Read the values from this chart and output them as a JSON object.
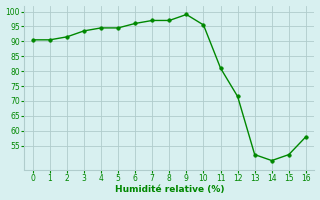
{
  "x": [
    0,
    1,
    2,
    3,
    4,
    5,
    6,
    7,
    8,
    9,
    10,
    11,
    12,
    13,
    14,
    15,
    16
  ],
  "y": [
    90.5,
    90.5,
    91.5,
    93.5,
    94.5,
    94.5,
    96,
    97,
    97,
    99,
    95.5,
    81,
    71.5,
    52,
    50,
    52,
    58
  ],
  "line_color": "#008800",
  "marker": "o",
  "marker_size": 2.5,
  "bg_color": "#d8f0f0",
  "grid_color": "#b0cccc",
  "xlabel": "Humidité relative (%)",
  "xlabel_color": "#008800",
  "tick_color": "#008800",
  "xlim": [
    -0.5,
    16.5
  ],
  "ylim": [
    47,
    102
  ],
  "yticks": [
    55,
    60,
    65,
    70,
    75,
    80,
    85,
    90,
    95,
    100
  ],
  "xticks": [
    0,
    1,
    2,
    3,
    4,
    5,
    6,
    7,
    8,
    9,
    10,
    11,
    12,
    13,
    14,
    15,
    16
  ]
}
